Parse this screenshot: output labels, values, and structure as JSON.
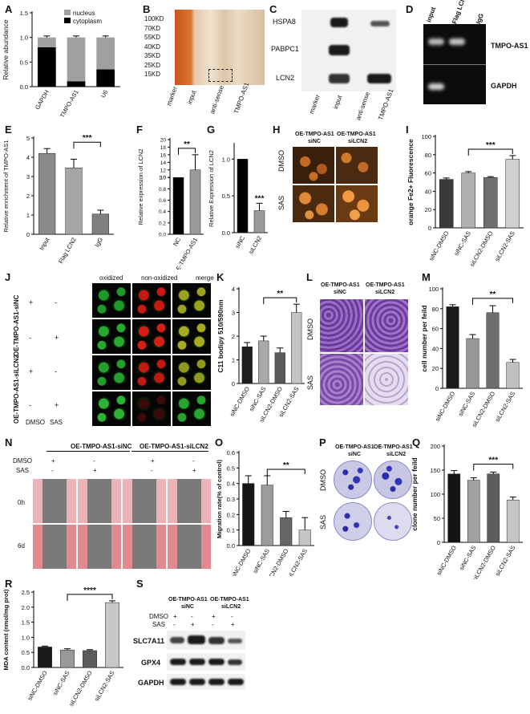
{
  "panels": {
    "A": "A",
    "B": "B",
    "C": "C",
    "D": "D",
    "E": "E",
    "F": "F",
    "G": "G",
    "H": "H",
    "I": "I",
    "J": "J",
    "K": "K",
    "L": "L",
    "M": "M",
    "N": "N",
    "O": "O",
    "P": "P",
    "Q": "Q",
    "R": "R",
    "S": "S"
  },
  "panelB": {
    "markers": [
      "100KD",
      "70KD",
      "55KD",
      "40KD",
      "35KD",
      "25KD",
      "15KD"
    ],
    "lanes": [
      "marker",
      "input",
      "anti-sense",
      "TMPO-AS1"
    ]
  },
  "panelC": {
    "proteins": [
      "HSPA8",
      "PABPC1",
      "LCN2"
    ],
    "lanes": [
      "marker",
      "input",
      "anti-sense",
      "TMPO-AS1"
    ]
  },
  "panelD": {
    "lanes": [
      "input",
      "Flag LCN2",
      "IgG"
    ],
    "rows": [
      "TMPO-AS1",
      "GAPDH"
    ]
  },
  "panelH": {
    "cols": [
      "OE-TMPO-AS1\nsiNC",
      "OE-TMPO-AS1\nsiLCN2"
    ],
    "col1a": "OE-TMPO-AS1",
    "col1b": "siNC",
    "col2a": "OE-TMPO-AS1",
    "col2b": "siLCN2",
    "rows": [
      "DMSO",
      "SAS"
    ]
  },
  "panelJ": {
    "cols": [
      "oxidized",
      "non-oxidized",
      "merge"
    ],
    "groups": [
      "OE-TMPO-AS1-siNC",
      "OE-TMPO-AS1-siLCN2"
    ],
    "signs": [
      [
        "+",
        "-"
      ],
      [
        "-",
        "+"
      ],
      [
        "+",
        "-"
      ],
      [
        "-",
        "+"
      ]
    ],
    "footer": [
      "DMSO",
      "SAS"
    ]
  },
  "panelL": {
    "col1a": "OE-TMPO-AS1",
    "col1b": "siNC",
    "col2a": "OE-TMPO-AS1",
    "col2b": "siLCN2",
    "rows": [
      "DMSO",
      "SAS"
    ]
  },
  "panelN": {
    "groups": [
      "OE-TMPO-AS1-siNC",
      "OE-TMPO-AS1-siLCN2"
    ],
    "rowlabels": [
      "DMSO",
      "SAS"
    ],
    "dmso": [
      "+",
      "-",
      "+",
      "-"
    ],
    "sas": [
      "-",
      "+",
      "-",
      "+"
    ],
    "times": [
      "0h",
      "6d"
    ]
  },
  "panelP": {
    "col1a": "OE-TMPO-AS1",
    "col1b": "siNC",
    "col2a": "OE-TMPO-AS1",
    "col2b": "siLCN2",
    "rows": [
      "DMSO",
      "SAS"
    ]
  },
  "panelS": {
    "col1a": "OE-TMPO-AS1",
    "col1b": "siNC",
    "col2a": "OE-TMPO-AS1",
    "col2b": "siLCN2",
    "dmso_label": "DMSO",
    "sas_label": "SAS",
    "dmso": [
      "+",
      "-",
      "+",
      "-"
    ],
    "sas": [
      "-",
      "+",
      "-",
      "+"
    ],
    "proteins": [
      "SLC7A11",
      "GPX4",
      "GAPDH"
    ]
  },
  "chart_data": [
    {
      "id": "A",
      "type": "bar",
      "stacked": true,
      "categories": [
        "GAPDH",
        "TMPO-AS1",
        "U6"
      ],
      "series": [
        {
          "name": "nucleus",
          "values": [
            0.2,
            0.89,
            0.65
          ],
          "color": "#a0a0a0"
        },
        {
          "name": "cytoplasm",
          "values": [
            0.8,
            0.11,
            0.35
          ],
          "color": "#000000"
        }
      ],
      "ylabel": "Relative abundance",
      "ylim": [
        0,
        1.5
      ],
      "yticks": [
        0.0,
        0.5,
        1.0,
        1.5
      ],
      "legend": "top-right"
    },
    {
      "id": "E",
      "type": "bar",
      "categories": [
        "Input",
        "Flag LCN2",
        "IgG"
      ],
      "values": [
        4.2,
        3.45,
        1.05
      ],
      "errors": [
        0.25,
        0.45,
        0.2
      ],
      "colors": [
        "#8a8a8a",
        "#a6a6a6",
        "#808080"
      ],
      "ylabel": "Relative enrichment of TMPO-AS1",
      "ylim": [
        0,
        5
      ],
      "yticks": [
        0,
        1,
        2,
        3,
        4,
        5
      ],
      "sig": {
        "from": 1,
        "to": 2,
        "label": "***"
      }
    },
    {
      "id": "F",
      "type": "bar",
      "categories": [
        "NC",
        "OE-TMPO-AS1"
      ],
      "values": [
        1,
        12
      ],
      "errors": [
        0,
        4
      ],
      "colors": [
        "#000000",
        "#9a9a9a"
      ],
      "ylabel": "Relative expression of LCN2",
      "ytickLabels": [
        "0.0",
        "0.2",
        "0.4",
        "0.6",
        "0.8",
        "1.0",
        "10",
        "12",
        "14",
        "16",
        "18",
        "20"
      ],
      "sig": {
        "from": 0,
        "to": 1,
        "label": "**"
      }
    },
    {
      "id": "G",
      "type": "bar",
      "categories": [
        "siNC",
        "siLCN2"
      ],
      "values": [
        1.0,
        0.3
      ],
      "errors": [
        0,
        0.1
      ],
      "colors": [
        "#000000",
        "#9a9a9a"
      ],
      "ylabel": "Relative Expression of LCN2",
      "ylim": [
        0,
        1.2
      ],
      "yticks": [
        0.0,
        0.5,
        1.0
      ],
      "sig": {
        "at": 1,
        "label": "***"
      }
    },
    {
      "id": "I",
      "type": "bar",
      "categories": [
        "siNC-DMSO",
        "siNC-SAS",
        "siLCN2-DMSO",
        "siLCN2-SAS"
      ],
      "values": [
        53,
        60,
        55,
        75
      ],
      "errors": [
        1.5,
        1.5,
        1,
        4
      ],
      "colors": [
        "#3a3a3a",
        "#b0b0b0",
        "#6f6f6f",
        "#d0d0d0"
      ],
      "ylabel": "orange Fe2+ Fluorescence",
      "ylim": [
        0,
        100
      ],
      "yticks": [
        0,
        20,
        40,
        60,
        80,
        100
      ],
      "sig": {
        "from": 1,
        "to": 3,
        "label": "***"
      }
    },
    {
      "id": "K",
      "type": "bar",
      "categories": [
        "siNC-DMSO",
        "siNC-SAS",
        "siLCN2-DMSO",
        "siLCN2-SAS"
      ],
      "values": [
        1.55,
        1.8,
        1.3,
        3.0
      ],
      "errors": [
        0.18,
        0.2,
        0.2,
        0.35
      ],
      "colors": [
        "#1e1e1e",
        "#a9a9a9",
        "#595959",
        "#c4c4c4"
      ],
      "ylabel": "C11 bodipy 510/590nm",
      "ylim": [
        0,
        4
      ],
      "yticks": [
        0,
        1,
        2,
        3,
        4
      ],
      "sig": {
        "from": 1,
        "to": 3,
        "label": "**"
      }
    },
    {
      "id": "M",
      "type": "bar",
      "categories": [
        "siNC-DMSO",
        "siNC-SAS",
        "siLCN2-DMSO",
        "siLCN2-SAS"
      ],
      "values": [
        82,
        50,
        76,
        26
      ],
      "errors": [
        2,
        4,
        7,
        3
      ],
      "colors": [
        "#1a1a1a",
        "#979797",
        "#6e6e6e",
        "#c0c0c0"
      ],
      "ylabel": "cell number per feild",
      "ylim": [
        0,
        100
      ],
      "yticks": [
        0,
        20,
        40,
        60,
        80,
        100
      ],
      "sig": {
        "from": 1,
        "to": 3,
        "label": "**"
      }
    },
    {
      "id": "O",
      "type": "bar",
      "categories": [
        "siNC-DMSO",
        "siNC-SAS",
        "siLCN2-DMSO",
        "siLCN2-SAS"
      ],
      "values": [
        0.4,
        0.39,
        0.18,
        0.1
      ],
      "errors": [
        0.05,
        0.06,
        0.04,
        0.08
      ],
      "colors": [
        "#161616",
        "#9c9c9c",
        "#666666",
        "#c4c4c4"
      ],
      "ylabel": "Migration rate(% of control)",
      "ylim": [
        0,
        0.6
      ],
      "yticks": [
        0.0,
        0.1,
        0.2,
        0.3,
        0.4,
        0.5,
        0.6
      ],
      "sig": {
        "from": 1,
        "to": 3,
        "label": "**"
      }
    },
    {
      "id": "Q",
      "type": "bar",
      "categories": [
        "siNC-DMSO",
        "siNC-SAS",
        "siLCN2-DMSO",
        "siLCN2-SAS"
      ],
      "values": [
        142,
        129,
        142,
        88
      ],
      "errors": [
        7,
        5,
        4,
        6
      ],
      "colors": [
        "#141414",
        "#a1a1a1",
        "#5d5d5d",
        "#c5c5c5"
      ],
      "ylabel": "clone number per feild",
      "ylim": [
        0,
        200
      ],
      "yticks": [
        0,
        50,
        100,
        150,
        200
      ],
      "sig": {
        "from": 1,
        "to": 3,
        "label": "***"
      }
    },
    {
      "id": "R",
      "type": "bar",
      "categories": [
        "siNC-DMSO",
        "siNC-SAS",
        "siLCN2-DMSO",
        "siLCN2-SAS"
      ],
      "values": [
        0.68,
        0.58,
        0.56,
        2.15
      ],
      "errors": [
        0.03,
        0.04,
        0.03,
        0.06
      ],
      "colors": [
        "#1a1a1a",
        "#9a9a9a",
        "#5c5c5c",
        "#c8c8c8"
      ],
      "ylabel": "MDA content (nmol/mg prot)",
      "ylim": [
        0,
        2.5
      ],
      "yticks": [
        0.0,
        0.5,
        1.0,
        1.5,
        2.0,
        2.5
      ],
      "sig": {
        "from": 1,
        "to": 3,
        "label": "****"
      }
    }
  ]
}
